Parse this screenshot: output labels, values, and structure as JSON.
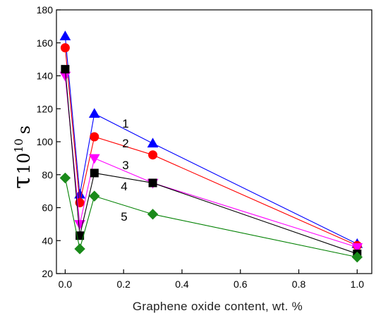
{
  "chart_data": {
    "type": "line",
    "xlabel": "Graphene oxide content, wt. %",
    "ylabel": {
      "symbol": "τ",
      "superscript_base": "10",
      "superscript_exp": "10",
      "unit": "s"
    },
    "xlim": [
      -0.03,
      1.05
    ],
    "ylim": [
      20,
      180
    ],
    "x_ticks": [
      0.0,
      0.2,
      0.4,
      0.6,
      0.8,
      1.0
    ],
    "x_tick_labels": [
      "0.0",
      "0.2",
      "0.4",
      "0.6",
      "0.8",
      "1.0"
    ],
    "y_ticks": [
      20,
      40,
      60,
      80,
      100,
      120,
      140,
      160,
      180
    ],
    "y_tick_labels": [
      "20",
      "40",
      "60",
      "80",
      "100",
      "120",
      "140",
      "160",
      "180"
    ],
    "grid": false,
    "legend": "inline numeric labels",
    "x": [
      0,
      0.05,
      0.1,
      0.3,
      1.0
    ],
    "series": [
      {
        "name": "1",
        "marker": "triangle-up",
        "color": "#0000ff",
        "marker_color": "#0000ff",
        "line_color": "#0000ff",
        "values": [
          164,
          68,
          117,
          99,
          38
        ],
        "label_pos": [
          0.02,
          1
        ]
      },
      {
        "name": "2",
        "marker": "circle",
        "color": "#ff0000",
        "marker_color": "#ff0000",
        "line_color": "#ff0000",
        "values": [
          157,
          63,
          103,
          92,
          37
        ],
        "label_pos": [
          0.02,
          1
        ]
      },
      {
        "name": "3",
        "marker": "triangle-down",
        "color": "#ff00ff",
        "marker_color": "#ff00ff",
        "line_color": "#ff00ff",
        "values": [
          140,
          50,
          90,
          75,
          36
        ],
        "label_pos": [
          0.02,
          1
        ]
      },
      {
        "name": "4",
        "marker": "square",
        "color": "#000000",
        "marker_color": "#000000",
        "line_color": "#000000",
        "values": [
          144,
          43,
          81,
          75,
          32
        ],
        "label_pos": [
          0.02,
          1
        ]
      },
      {
        "name": "5",
        "marker": "diamond",
        "color": "#008000",
        "marker_color": "#1a8a1a",
        "line_color": "#008000",
        "values": [
          78,
          35,
          67,
          56,
          30
        ],
        "label_pos": [
          0.02,
          1
        ]
      }
    ]
  }
}
